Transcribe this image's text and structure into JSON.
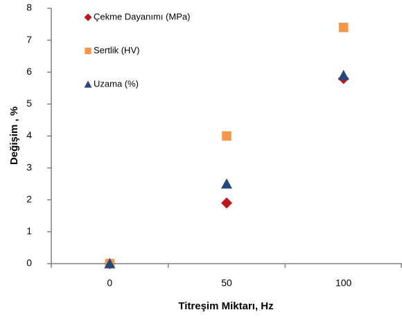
{
  "chart_data": {
    "type": "scatter",
    "x_label": "Titreşim Miktarı, Hz",
    "y_label": "Değişim , %",
    "categories": [
      "0",
      "50",
      "100"
    ],
    "series": [
      {
        "name": "Çekme Dayanımı (MPa)",
        "color": "#c0141c",
        "marker": "diamond",
        "values": [
          0,
          1.9,
          5.8
        ]
      },
      {
        "name": "Sertlik (HV)",
        "color": "#f79646",
        "marker": "square",
        "values": [
          0,
          4.0,
          7.4
        ]
      },
      {
        "name": "Uzama (%)",
        "color": "#24487f",
        "marker": "triangle",
        "values": [
          0,
          2.5,
          5.9
        ]
      }
    ],
    "ylim": [
      0,
      8
    ],
    "yticks": [
      0,
      1,
      2,
      3,
      4,
      5,
      6,
      7,
      8
    ],
    "legend": "upper left",
    "grid": false
  }
}
